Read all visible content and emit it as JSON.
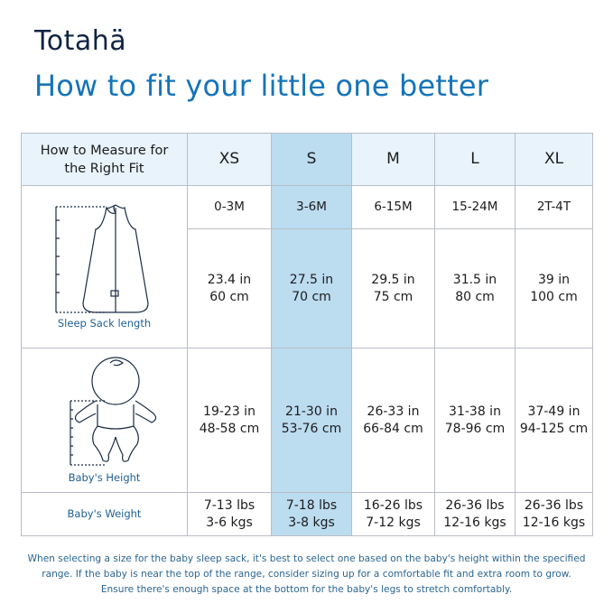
{
  "brand": {
    "logo": "Totahä"
  },
  "title": "How to fit your little one better",
  "table": {
    "header_label": [
      "How to Measure for",
      "the Right Fit"
    ],
    "sizes": [
      "XS",
      "S",
      "M",
      "L",
      "XL"
    ],
    "selected_size": "S",
    "rows": {
      "age": [
        "0-3M",
        "3-6M",
        "6-15M",
        "15-24M",
        "2T-4T"
      ],
      "length": {
        "label": "Sleep Sack length",
        "icon": "sleep-sack-icon",
        "values": [
          [
            "23.4 in",
            "60 cm"
          ],
          [
            "27.5 in",
            "70 cm"
          ],
          [
            "29.5 in",
            "75 cm"
          ],
          [
            "31.5 in",
            "80 cm"
          ],
          [
            "39 in",
            "100 cm"
          ]
        ]
      },
      "height": {
        "label": "Baby's Height",
        "icon": "baby-icon",
        "values": [
          [
            "19-23 in",
            "48-58 cm"
          ],
          [
            "21-30 in",
            "53-76 cm"
          ],
          [
            "26-33 in",
            "66-84 cm"
          ],
          [
            "31-38 in",
            "78-96 cm"
          ],
          [
            "37-49 in",
            "94-125 cm"
          ]
        ]
      },
      "weight": {
        "label": "Baby's Weight",
        "values": [
          [
            "7-13 lbs",
            "3-6 kgs"
          ],
          [
            "7-18 lbs",
            "3-8 kgs"
          ],
          [
            "16-26 lbs",
            "7-12 kgs"
          ],
          [
            "26-36 lbs",
            "12-16 kgs"
          ],
          [
            "26-36 lbs",
            "12-16 kgs"
          ]
        ]
      }
    }
  },
  "note": [
    "When selecting a size for the baby sleep sack, it's best to select one based on the baby's height within the specified",
    "range. If the baby is near the top of the range, consider sizing up for a comfortable fit and extra room to grow.",
    "Ensure there's enough space at the bottom for the baby's legs to stretch comfortably."
  ],
  "colors": {
    "accent": "#1674b8",
    "brand": "#0f2344",
    "highlight": "#bcdcf0",
    "header_bg": "#e8f3fb"
  }
}
